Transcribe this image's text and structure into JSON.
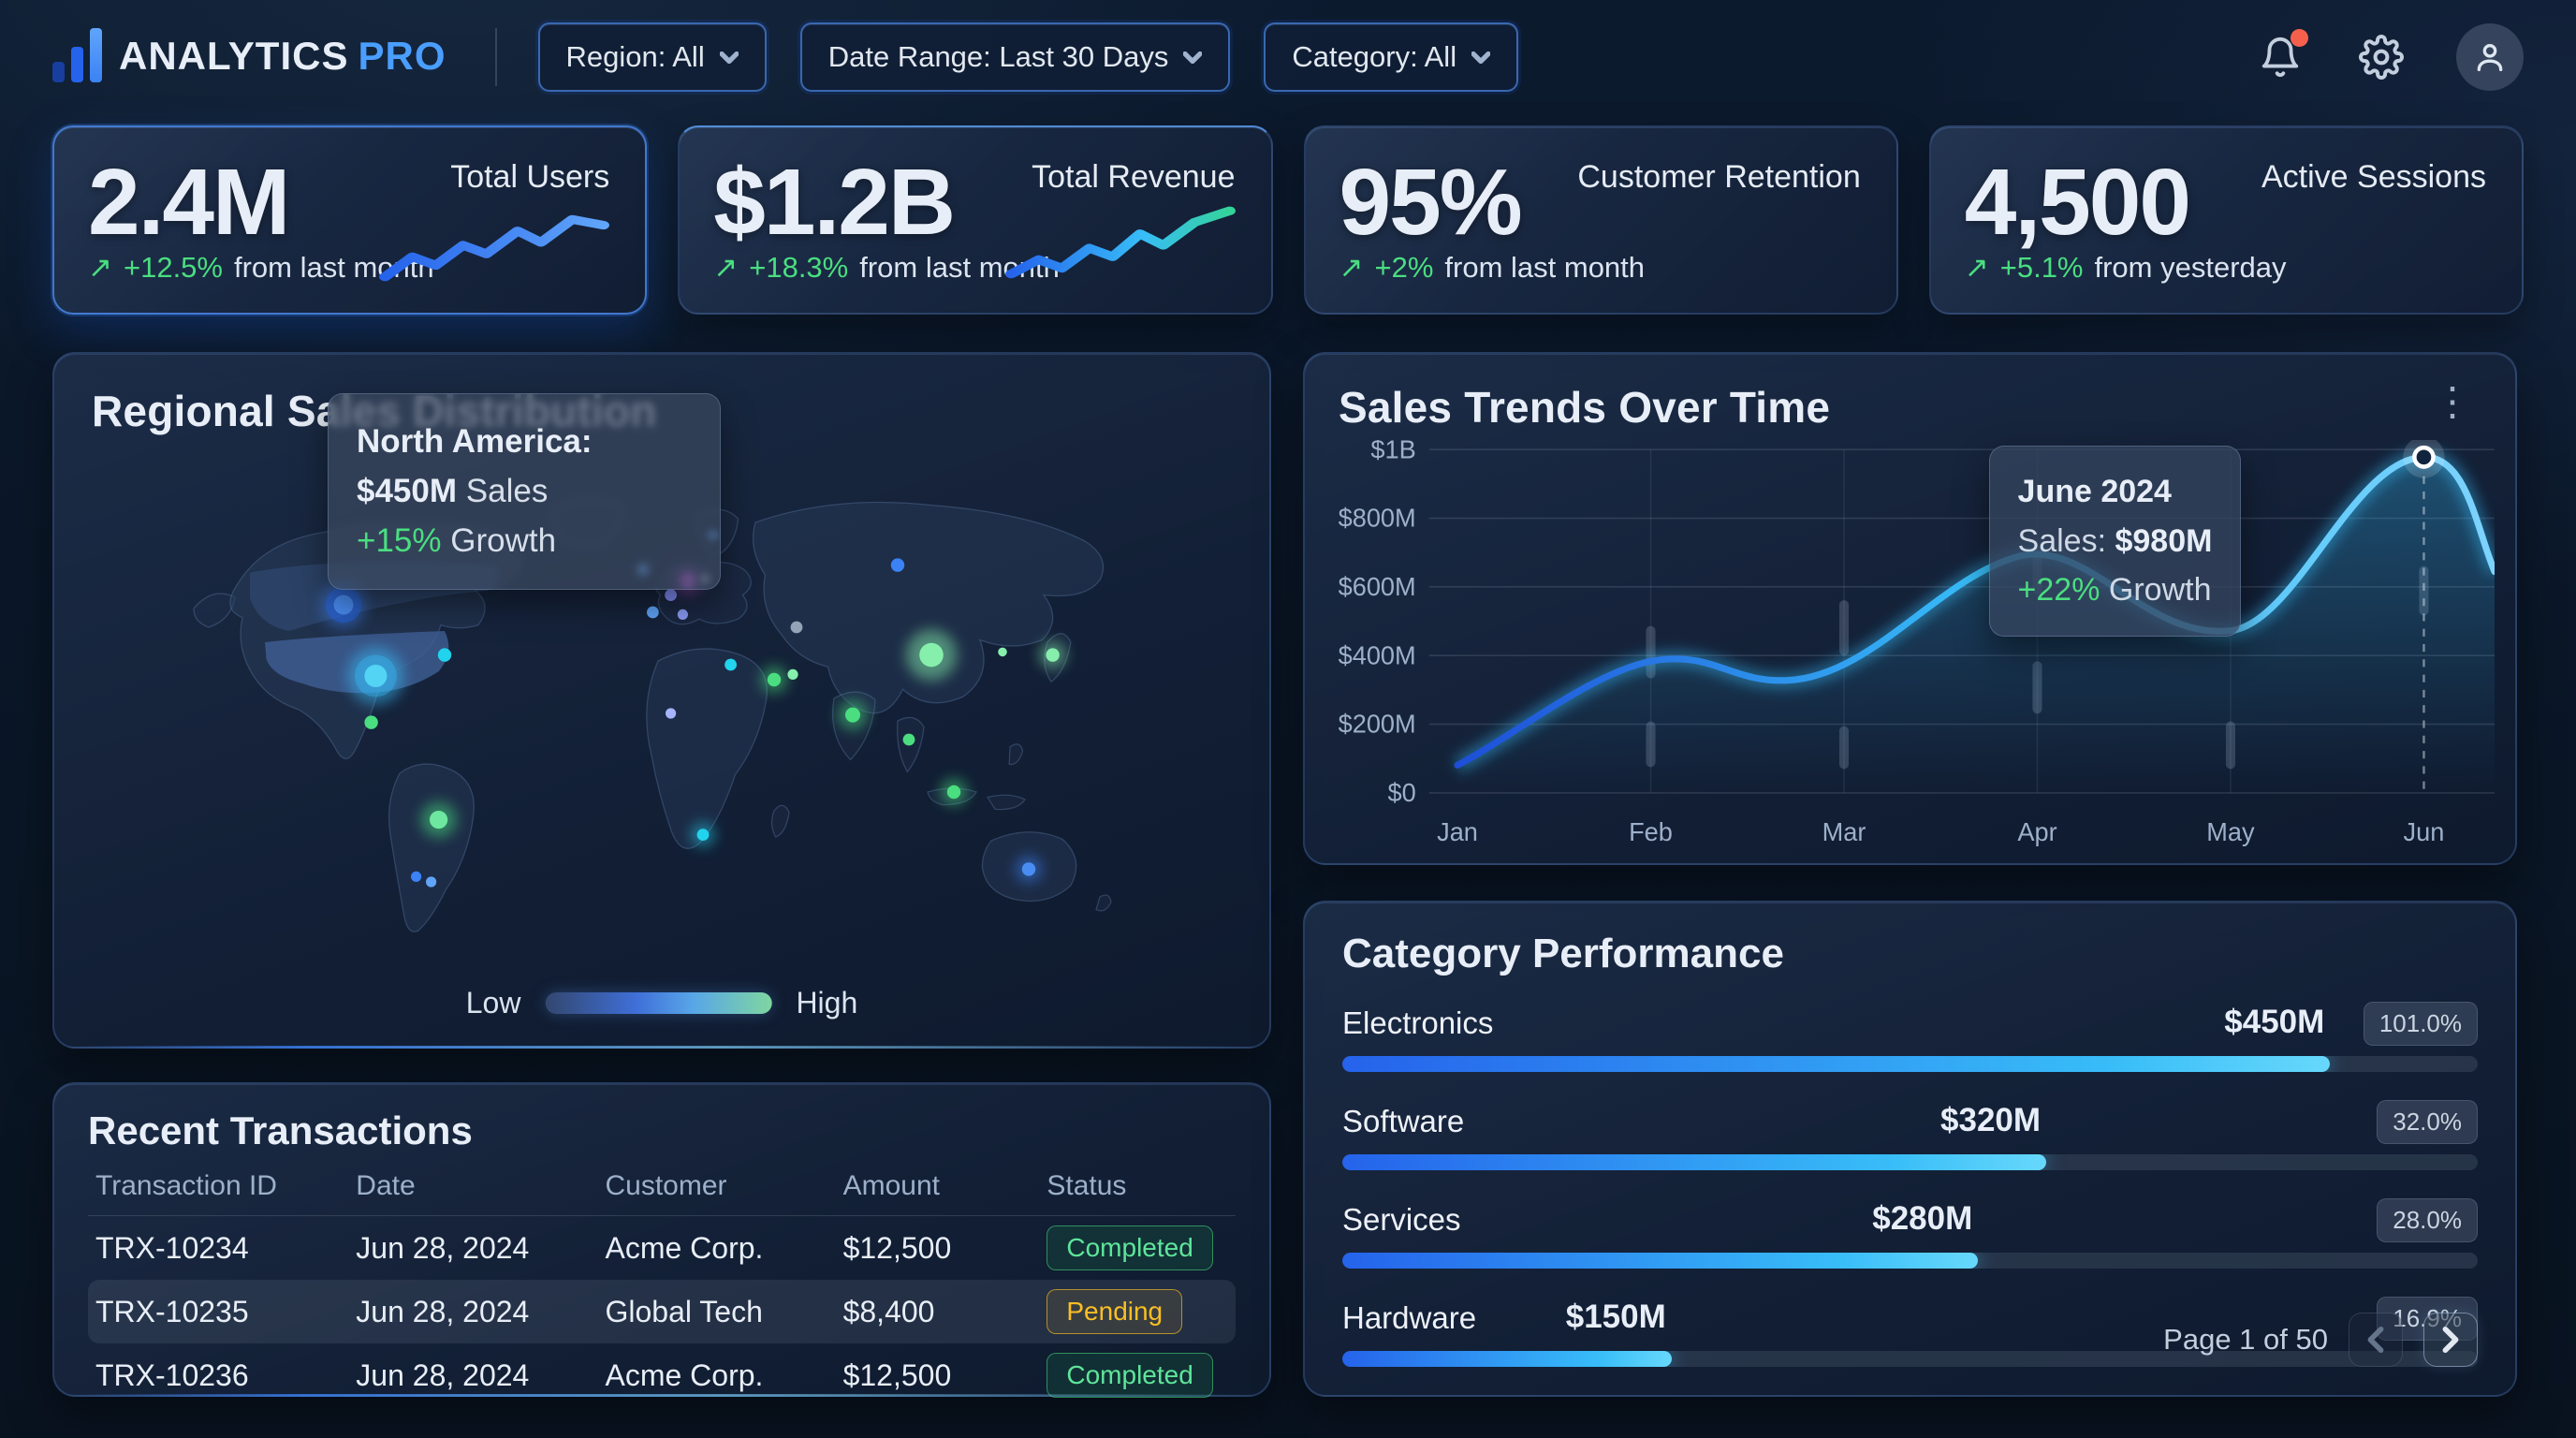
{
  "header": {
    "brand": {
      "name": "ANALYTICS",
      "suffix": "PRO"
    },
    "filters": [
      {
        "label": "Region: All"
      },
      {
        "label": "Date Range: Last 30 Days"
      },
      {
        "label": "Category: All"
      }
    ],
    "icons": [
      "bell-icon",
      "gear-icon",
      "user-avatar"
    ]
  },
  "kpis": [
    {
      "value": "2.4M",
      "label": "Total Users",
      "arrow": "↗",
      "delta": "+12.5%",
      "delta_suffix": "from last month"
    },
    {
      "value": "$1.2B",
      "label": "Total Revenue",
      "arrow": "↗",
      "delta": "+18.3%",
      "delta_suffix": "from last month"
    },
    {
      "value": "95%",
      "label": "Customer Retention",
      "arrow": "↗",
      "delta": "+2%",
      "delta_suffix": "from last month"
    },
    {
      "value": "4,500",
      "label": "Active Sessions",
      "arrow": "↗",
      "delta": "+5.1%",
      "delta_suffix": "from yesterday"
    }
  ],
  "map": {
    "title": "Regional Sales Distribution",
    "tooltip": {
      "region": "North America:",
      "sales_value": "$450M",
      "sales_label": "Sales",
      "growth_value": "+15%",
      "growth_label": "Growth"
    },
    "legend": {
      "low": "Low",
      "high": "High"
    }
  },
  "sales_trends": {
    "title": "Sales Trends Over Time",
    "menu_icon": "⋮",
    "y_ticks": [
      "$1B",
      "$800M",
      "$600M",
      "$400M",
      "$200M",
      "$0"
    ],
    "x_ticks": [
      "Jan",
      "Feb",
      "Mar",
      "Apr",
      "May",
      "Jun"
    ],
    "tooltip": {
      "date": "June 2024",
      "sales_label": "Sales:",
      "sales_value": "$980M",
      "growth_value": "+22%",
      "growth_label": "Growth"
    },
    "chart_data": {
      "type": "line",
      "x": [
        "Jan",
        "Feb",
        "Mar",
        "Apr",
        "May",
        "Jun"
      ],
      "values_musd": [
        80,
        380,
        350,
        690,
        490,
        980
      ],
      "highlight": {
        "x": "Jun",
        "value_musd": 980,
        "label": "June 2024, Sales $980M, +22% Growth"
      },
      "ylim_musd": [
        0,
        1000
      ],
      "grid": true,
      "legend_position": "none"
    }
  },
  "categories": {
    "title": "Category Performance",
    "rows": [
      {
        "label": "Electronics",
        "value": "$450M",
        "badge": "101.0%",
        "fill_pct": 87
      },
      {
        "label": "Software",
        "value": "$320M",
        "badge": "32.0%",
        "fill_pct": 62
      },
      {
        "label": "Services",
        "value": "$280M",
        "badge": "28.0%",
        "fill_pct": 56
      },
      {
        "label": "Hardware",
        "value": "$150M",
        "badge": "16.9%",
        "fill_pct": 29
      }
    ],
    "chart_data": {
      "type": "bar",
      "categories": [
        "Electronics",
        "Software",
        "Services",
        "Hardware"
      ],
      "values_musd": [
        450,
        320,
        280,
        150
      ],
      "badges_pct": [
        101.0,
        32.0,
        28.0,
        16.9
      ]
    },
    "pagination": {
      "label": "Page 1 of 50"
    }
  },
  "transactions": {
    "title": "Recent Transactions",
    "columns": [
      "Transaction ID",
      "Date",
      "Customer",
      "Amount",
      "Status"
    ],
    "rows": [
      {
        "id": "TRX-10234",
        "date": "Jun 28, 2024",
        "customer": "Acme Corp.",
        "amount": "$12,500",
        "status": "Completed"
      },
      {
        "id": "TRX-10235",
        "date": "Jun 28, 2024",
        "customer": "Global Tech",
        "amount": "$8,400",
        "status": "Pending"
      },
      {
        "id": "TRX-10236",
        "date": "Jun 28, 2024",
        "customer": "Acme Corp.",
        "amount": "$12,500",
        "status": "Completed"
      }
    ]
  },
  "colors": {
    "accent_blue": "#3b82f6",
    "accent_cyan": "#38bdf8",
    "positive_green": "#4ade80",
    "pending_amber": "#fbbf24",
    "notification_red": "#f5604d",
    "panel_bg": "#16243a",
    "page_bg": "#0a1626"
  }
}
